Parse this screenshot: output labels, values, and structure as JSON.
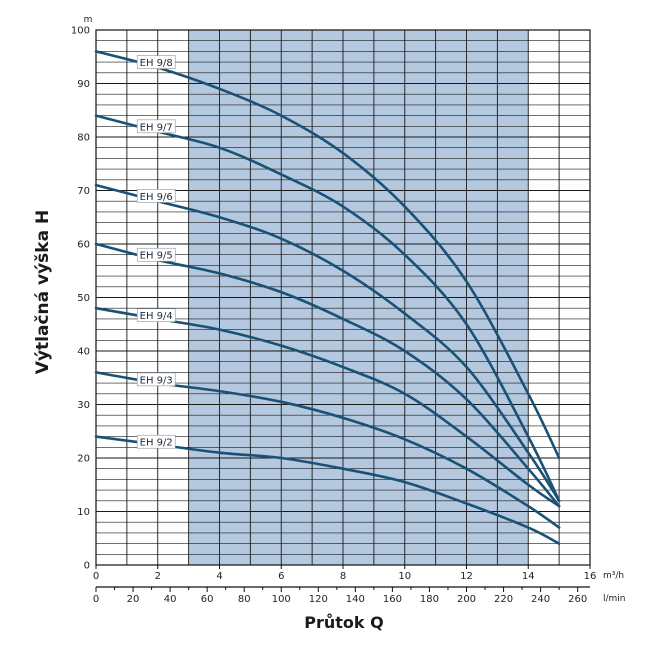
{
  "chart_data": {
    "type": "line",
    "ylabel": "Výtlačná výška H",
    "xlabel": "Průtok Q",
    "y_unit": "m",
    "x_unit_primary": "m³/h",
    "x_unit_secondary": "l/min",
    "xlim": [
      0,
      16
    ],
    "ylim": [
      0,
      100
    ],
    "x_ticks": [
      "0",
      "2",
      "4",
      "6",
      "8",
      "10",
      "12",
      "14",
      "16"
    ],
    "x_ticks_secondary": [
      "0",
      "20",
      "40",
      "60",
      "80",
      "100",
      "120",
      "140",
      "160",
      "180",
      "200",
      "220",
      "240",
      "260"
    ],
    "y_ticks": [
      "0",
      "10",
      "20",
      "30",
      "40",
      "50",
      "60",
      "70",
      "80",
      "90",
      "100"
    ],
    "shaded_region": [
      3,
      14
    ],
    "grid": true,
    "series": [
      {
        "name": "EH 9/8",
        "x": [
          0,
          2,
          4,
          6,
          8,
          10,
          12,
          14,
          15
        ],
        "y": [
          96,
          93,
          89,
          84,
          77,
          67,
          53,
          32,
          20
        ]
      },
      {
        "name": "EH 9/7",
        "x": [
          0,
          2,
          4,
          6,
          8,
          10,
          12,
          14,
          15
        ],
        "y": [
          84,
          81,
          78,
          73,
          67,
          58,
          45,
          24,
          12
        ]
      },
      {
        "name": "EH 9/6",
        "x": [
          0,
          2,
          4,
          6,
          8,
          10,
          12,
          14,
          15
        ],
        "y": [
          71,
          68,
          65,
          61,
          55,
          47,
          37,
          21,
          12
        ]
      },
      {
        "name": "EH 9/5",
        "x": [
          0,
          2,
          4,
          6,
          8,
          10,
          12,
          14,
          15
        ],
        "y": [
          60,
          57,
          54.5,
          51,
          46,
          40,
          31,
          18,
          11
        ]
      },
      {
        "name": "EH 9/4",
        "x": [
          0,
          2,
          4,
          6,
          8,
          10,
          12,
          14,
          15
        ],
        "y": [
          48,
          46,
          44,
          41,
          37,
          32,
          24,
          15,
          11
        ]
      },
      {
        "name": "EH 9/3",
        "x": [
          0,
          2,
          4,
          6,
          8,
          10,
          12,
          14,
          15
        ],
        "y": [
          36,
          34,
          32.5,
          30.5,
          27.5,
          23.5,
          18,
          11,
          7
        ]
      },
      {
        "name": "EH 9/2",
        "x": [
          0,
          2,
          4,
          6,
          8,
          10,
          12,
          14,
          15
        ],
        "y": [
          24,
          22.5,
          21,
          20,
          18,
          15.5,
          11.5,
          7,
          4
        ]
      }
    ]
  }
}
